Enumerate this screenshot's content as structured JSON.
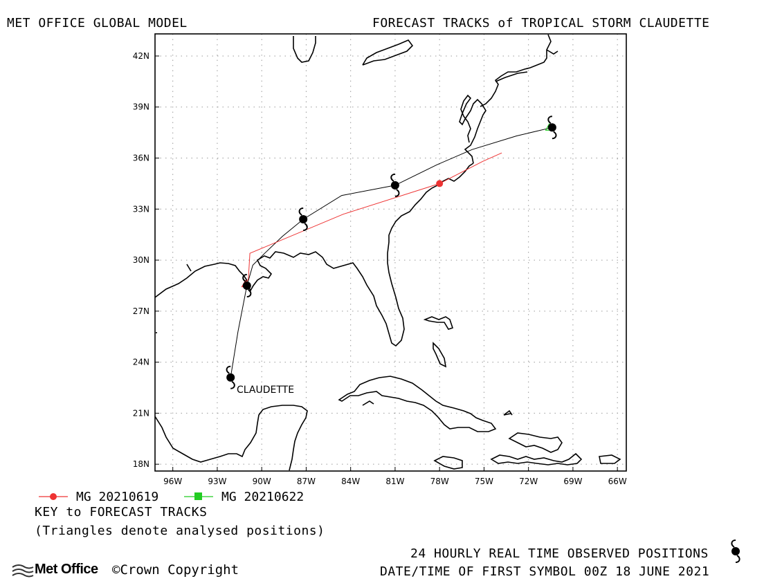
{
  "header": {
    "left_title": "MET OFFICE GLOBAL MODEL",
    "right_title": "FORECAST TRACKS of TROPICAL STORM CLAUDETTE"
  },
  "map": {
    "storm_label": "CLAUDETTE",
    "lat_labels": [
      "42N",
      "39N",
      "36N",
      "33N",
      "30N",
      "27N",
      "24N",
      "21N",
      "18N"
    ],
    "lon_labels": [
      "96W",
      "93W",
      "90W",
      "87W",
      "84W",
      "81W",
      "78W",
      "75W",
      "72W",
      "69W",
      "66W"
    ],
    "lat_values": [
      42,
      39,
      36,
      33,
      30,
      27,
      24,
      21,
      18
    ],
    "lon_values": [
      -96,
      -93,
      -90,
      -87,
      -84,
      -81,
      -78,
      -75,
      -72,
      -69,
      -66
    ],
    "lat_range": [
      17.6,
      43.3
    ],
    "lon_range": [
      -97.2,
      -65.4
    ],
    "observed_track": [
      {
        "lat": 23.1,
        "lon": -92.1
      },
      {
        "lat": 28.5,
        "lon": -91.0
      },
      {
        "lat": 32.4,
        "lon": -87.2
      },
      {
        "lat": 34.4,
        "lon": -81.0
      },
      {
        "lat": 37.8,
        "lon": -70.4
      }
    ],
    "observed_path": [
      [
        23.1,
        -92.1
      ],
      [
        25.8,
        -91.6
      ],
      [
        28.5,
        -91.0
      ],
      [
        29.7,
        -90.6
      ],
      [
        30.4,
        -89.8
      ],
      [
        31.4,
        -88.6
      ],
      [
        32.4,
        -87.2
      ],
      [
        33.8,
        -84.6
      ],
      [
        34.4,
        -81.0
      ],
      [
        35.6,
        -78.2
      ],
      [
        36.5,
        -75.8
      ],
      [
        37.3,
        -72.8
      ],
      [
        37.8,
        -70.4
      ]
    ],
    "forecast_tracks": [
      {
        "legend": "MG 20210619",
        "color": "#ee3333",
        "path": [
          [
            28.6,
            -91.1
          ],
          [
            28.9,
            -90.9
          ],
          [
            30.4,
            -90.8
          ],
          [
            32.7,
            -84.5
          ],
          [
            34.5,
            -78.0
          ],
          [
            35.8,
            -75.1
          ],
          [
            36.3,
            -73.8
          ]
        ],
        "marker": {
          "lat": 34.5,
          "lon": -78.0
        }
      },
      {
        "legend": "MG 20210622",
        "color": "#22cc22",
        "path": [
          [
            37.8,
            -70.6
          ]
        ],
        "marker": {
          "lat": 37.8,
          "lon": -70.6
        }
      }
    ]
  },
  "footer": {
    "key_title": "KEY to FORECAST TRACKS",
    "triangles_note": "(Triangles denote analysed positions)",
    "observed_note": "24 HOURLY REAL TIME OBSERVED POSITIONS",
    "datetime_note": "DATE/TIME OF FIRST SYMBOL 00Z 18 JUNE 2021",
    "logo_text": "Met Office",
    "copyright": "©Crown Copyright"
  },
  "colors": {
    "land_outline": "#000000",
    "grid": "#999999",
    "observed_track": "#000000",
    "forecast_red": "#ee3333",
    "forecast_green": "#22cc22"
  }
}
